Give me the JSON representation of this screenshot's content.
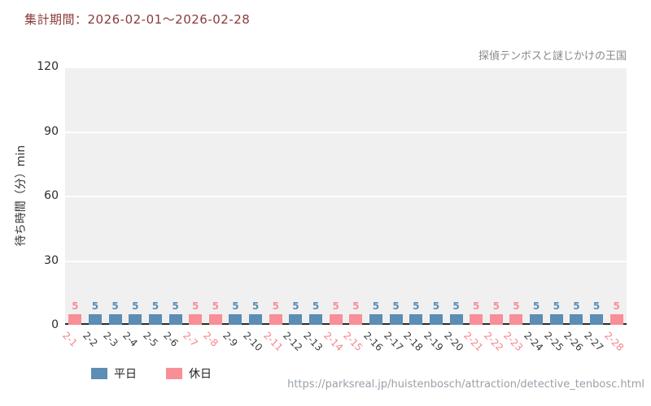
{
  "header": {
    "period": "集計期間：2026-02-01～2026-02-28",
    "color": "#8b3a3a"
  },
  "chart_data": {
    "type": "bar",
    "title": "探偵テンボスと謎じかけの王国",
    "ylabel": "待ち時間（分）min",
    "xlabel": "",
    "ylim": [
      0,
      120
    ],
    "yticks": [
      0,
      30,
      60,
      90,
      120
    ],
    "grid": true,
    "plot_bg": "#f0f0f0",
    "categories": [
      "2-1",
      "2-2",
      "2-3",
      "2-4",
      "2-5",
      "2-6",
      "2-7",
      "2-8",
      "2-9",
      "2-10",
      "2-11",
      "2-12",
      "2-13",
      "2-14",
      "2-15",
      "2-16",
      "2-17",
      "2-18",
      "2-19",
      "2-20",
      "2-21",
      "2-22",
      "2-23",
      "2-24",
      "2-25",
      "2-26",
      "2-27",
      "2-28"
    ],
    "values": [
      5,
      5,
      5,
      5,
      5,
      5,
      5,
      5,
      5,
      5,
      5,
      5,
      5,
      5,
      5,
      5,
      5,
      5,
      5,
      5,
      5,
      5,
      5,
      5,
      5,
      5,
      5,
      5
    ],
    "day_types": [
      "holiday",
      "weekday",
      "weekday",
      "weekday",
      "weekday",
      "weekday",
      "holiday",
      "holiday",
      "weekday",
      "weekday",
      "holiday",
      "weekday",
      "weekday",
      "holiday",
      "holiday",
      "weekday",
      "weekday",
      "weekday",
      "weekday",
      "weekday",
      "holiday",
      "holiday",
      "holiday",
      "weekday",
      "weekday",
      "weekday",
      "weekday",
      "holiday"
    ],
    "colors": {
      "weekday": "#5b8db5",
      "holiday": "#f88f98",
      "weekday_text": "#3d3d3d",
      "holiday_text": "#f8838e"
    },
    "legend_position": "bottom-left",
    "legend": [
      {
        "label": "平日",
        "type": "weekday",
        "color": "#5b8db5"
      },
      {
        "label": "休日",
        "type": "holiday",
        "color": "#f88f98"
      }
    ]
  },
  "footer": {
    "url": "https://parksreal.jp/huistenbosch/attraction/detective_tenbosc.html"
  }
}
